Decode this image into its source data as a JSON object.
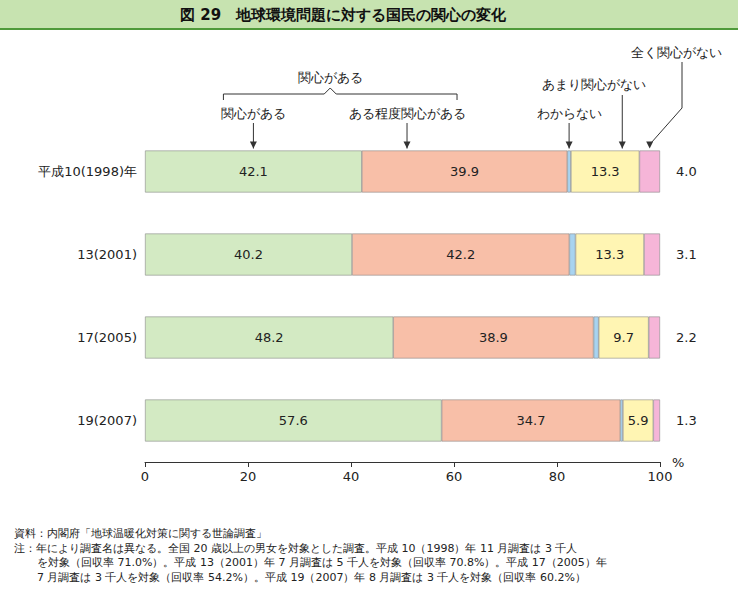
{
  "chart_data": {
    "type": "bar",
    "title": "図 29　地球環境問題に対する国民の関心の変化",
    "orientation": "horizontal",
    "stacked": true,
    "data_labels": true,
    "grid": false,
    "categories": [
      "平成10(1998)年",
      "13(2001)",
      "17(2005)",
      "19(2007)"
    ],
    "series": [
      {
        "name": "関心がある",
        "color": "#d3eac3",
        "values": [
          42.1,
          40.2,
          48.2,
          57.6
        ]
      },
      {
        "name": "ある程度関心がある",
        "color": "#f8bfa8",
        "values": [
          39.9,
          42.2,
          38.9,
          34.7
        ]
      },
      {
        "name": "わからない",
        "color": "#a8d3f0",
        "values": [
          0.7,
          1.2,
          1.0,
          0.5
        ],
        "data_labels": false
      },
      {
        "name": "あまり関心がない",
        "color": "#fff5b3",
        "values": [
          13.3,
          13.3,
          9.7,
          5.9
        ]
      },
      {
        "name": "全く関心がない",
        "color": "#f6b5d8",
        "values": [
          4.0,
          3.1,
          2.2,
          1.3
        ],
        "value_labels": [
          "4.0",
          "3.1",
          "2.2",
          "1.3"
        ]
      }
    ],
    "xlim": [
      0,
      100
    ],
    "xticks": [
      0,
      20,
      40,
      60,
      80,
      100
    ],
    "xlabel": "%",
    "annotations": {
      "group_label": "関心がある",
      "source": "資料：内閣府「地球温暖化対策に関する世論調査」",
      "note": [
        "注：年により調査名は異なる。全国 20 歳以上の男女を対象とした調査。平成 10（1998）年 11 月調査は 3 千人",
        "を対象（回収率 71.0%）。平成 13（2001）年 7 月調査は 5 千人を対象（回収率 70.8%）。平成 17（2005）年",
        "7 月調査は 3 千人を対象（回収率 54.2%）。平成 19（2007）年 8 月調査は 3 千人を対象（回収率 60.2%）"
      ]
    }
  }
}
